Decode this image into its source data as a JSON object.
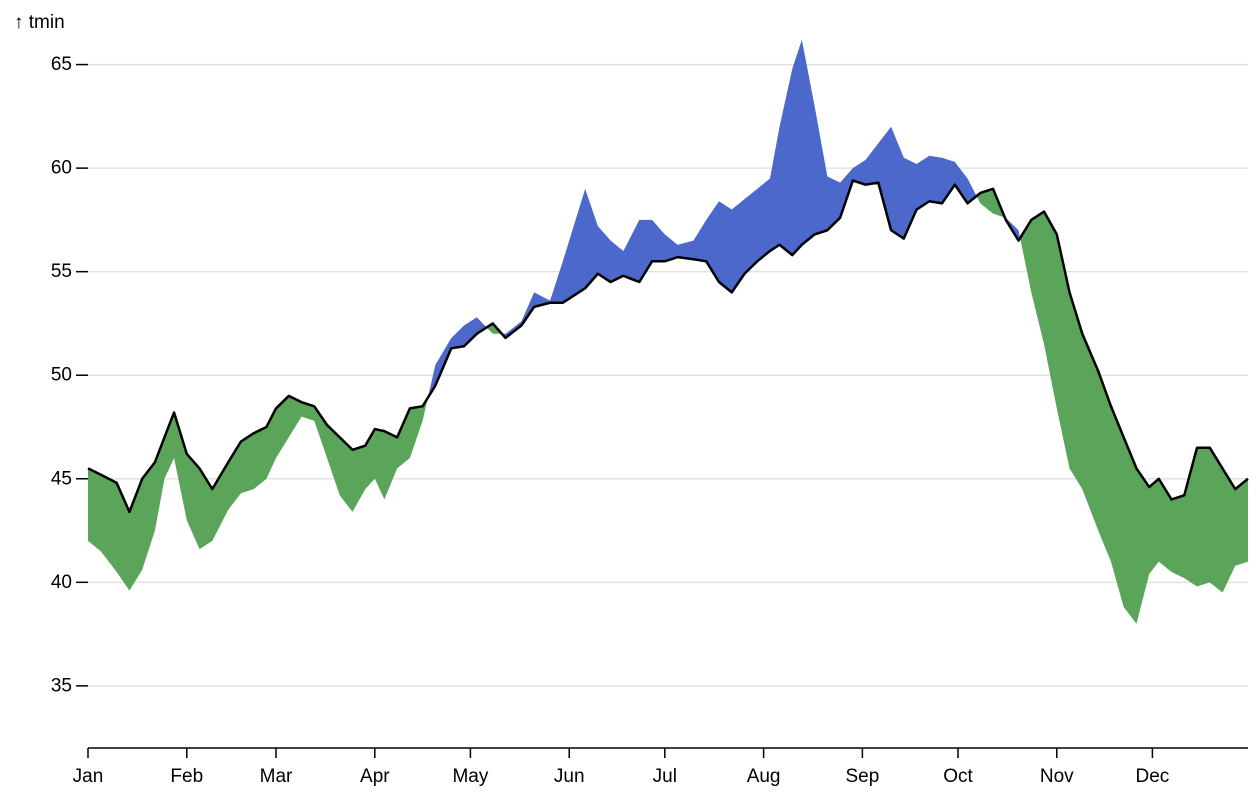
{
  "chart_data": {
    "type": "area",
    "title": "",
    "ylabel": "↑ tmin",
    "xlabel": "",
    "ylim": [
      32,
      65.8
    ],
    "y_ticks": [
      35,
      40,
      45,
      50,
      55,
      60,
      65
    ],
    "x_ticks": [
      "Jan",
      "Feb",
      "Mar",
      "Apr",
      "May",
      "Jun",
      "Jul",
      "Aug",
      "Sep",
      "Oct",
      "Nov",
      "Dec"
    ],
    "grid": "horizontal",
    "colors": {
      "above": "#4c68cb",
      "below": "#5ba55b",
      "line": "#000000",
      "grid": "#e2e2e2"
    },
    "x": [
      "Jan 1",
      "Jan 5",
      "Jan 10",
      "Jan 14",
      "Jan 18",
      "Jan 22",
      "Jan 25",
      "Jan 28",
      "Feb 1",
      "Feb 5",
      "Feb 9",
      "Feb 14",
      "Feb 18",
      "Feb 22",
      "Feb 26",
      "Mar 1",
      "Mar 5",
      "Mar 9",
      "Mar 13",
      "Mar 17",
      "Mar 21",
      "Mar 25",
      "Mar 29",
      "Apr 1",
      "Apr 4",
      "Apr 8",
      "Apr 12",
      "Apr 16",
      "Apr 20",
      "Apr 25",
      "Apr 29",
      "May 3",
      "May 8",
      "May 12",
      "May 17",
      "May 21",
      "May 26",
      "May 30",
      "Jun 2",
      "Jun 6",
      "Jun 10",
      "Jun 14",
      "Jun 18",
      "Jun 23",
      "Jun 27",
      "Jul 1",
      "Jul 5",
      "Jul 10",
      "Jul 14",
      "Jul 18",
      "Jul 22",
      "Jul 26",
      "Jul 30",
      "Aug 3",
      "Aug 6",
      "Aug 10",
      "Aug 13",
      "Aug 17",
      "Aug 21",
      "Aug 25",
      "Aug 29",
      "Sep 2",
      "Sep 6",
      "Sep 10",
      "Sep 14",
      "Sep 18",
      "Sep 22",
      "Sep 26",
      "Sep 30",
      "Oct 4",
      "Oct 8",
      "Oct 12",
      "Oct 16",
      "Oct 20",
      "Oct 24",
      "Oct 28",
      "Nov 1",
      "Nov 5",
      "Nov 9",
      "Nov 14",
      "Nov 18",
      "Nov 22",
      "Nov 26",
      "Nov 30",
      "Dec 3",
      "Dec 7",
      "Dec 11",
      "Dec 15",
      "Dec 19",
      "Dec 23",
      "Dec 27",
      "Dec 31"
    ],
    "series": [
      {
        "values": [
          45.5,
          45.2,
          44.8,
          43.4,
          45.0,
          45.8,
          47.0,
          48.2,
          46.2,
          45.5,
          44.5,
          45.8,
          46.8,
          47.2,
          47.5,
          48.4,
          49.0,
          48.7,
          48.5,
          47.6,
          47.0,
          46.4,
          46.6,
          47.4,
          47.3,
          47.0,
          48.4,
          48.5,
          49.5,
          51.3,
          51.4,
          52.0,
          52.5,
          51.8,
          52.4,
          53.3,
          53.5,
          53.5,
          53.8,
          54.2,
          54.9,
          54.5,
          54.8,
          54.5,
          55.5,
          55.5,
          55.7,
          55.6,
          55.5,
          54.5,
          54.0,
          54.9,
          55.5,
          56.0,
          56.3,
          55.8,
          56.3,
          56.8,
          57.0,
          57.6,
          59.4,
          59.2,
          59.3,
          57.0,
          56.6,
          58.0,
          58.4,
          58.3,
          59.2,
          58.3,
          58.8,
          59.0,
          57.5,
          56.5,
          57.5,
          57.9,
          56.8,
          54.0,
          52.0,
          50.2,
          48.5,
          47.0,
          45.5,
          44.6,
          45.0,
          44.0,
          44.2,
          46.5,
          46.5,
          45.5,
          44.5,
          45.0
        ]
      },
      {
        "values": [
          42.0,
          41.5,
          40.5,
          39.6,
          40.6,
          42.5,
          45.0,
          46.0,
          43.0,
          41.6,
          42.0,
          43.5,
          44.3,
          44.5,
          45.0,
          46.0,
          47.0,
          48.0,
          47.8,
          46.0,
          44.2,
          43.4,
          44.5,
          45.0,
          44.0,
          45.5,
          46.0,
          47.8,
          50.5,
          51.8,
          52.4,
          52.8,
          52.0,
          52.0,
          52.6,
          54.0,
          53.6,
          55.5,
          57.0,
          59.0,
          57.2,
          56.5,
          56.0,
          57.5,
          57.5,
          56.8,
          56.3,
          56.5,
          57.5,
          58.4,
          58.0,
          58.5,
          59.0,
          59.5,
          62.0,
          64.8,
          66.2,
          63.0,
          59.6,
          59.3,
          60.0,
          60.4,
          61.2,
          62.0,
          60.5,
          60.2,
          60.6,
          60.5,
          60.3,
          59.5,
          58.3,
          57.8,
          57.6,
          57.0,
          54.0,
          51.5,
          48.4,
          45.5,
          44.5,
          42.5,
          41.0,
          38.8,
          38.0,
          40.4,
          41.0,
          40.5,
          40.2,
          39.8,
          40.0,
          39.5,
          40.8,
          41.0
        ]
      }
    ]
  }
}
